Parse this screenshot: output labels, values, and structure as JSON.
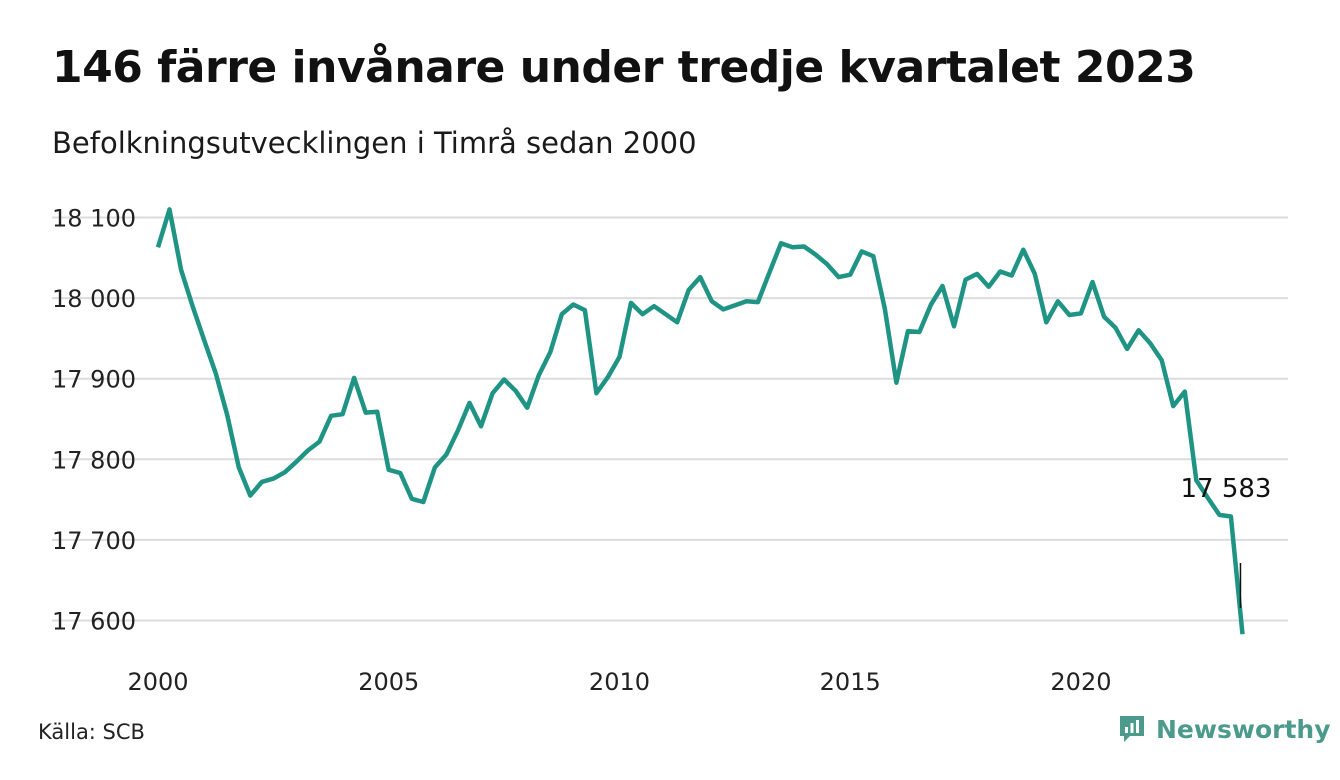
{
  "title": "146 färre invånare under tredje kvartalet 2023",
  "subtitle": "Befolkningsutvecklingen i Timrå sedan 2000",
  "source": "Källa: SCB",
  "brand": {
    "name": "Newsworthy",
    "icon": "newsworthy-logo-icon",
    "color": "#4b9a8c"
  },
  "chart_data": {
    "type": "line",
    "line_color": "#1f9485",
    "x_start": 2000,
    "x_step": 0.25,
    "xlim": [
      2000,
      2023.75
    ],
    "ylim": [
      17580,
      18110
    ],
    "grid": true,
    "y_ticks": [
      {
        "value": 17600,
        "label": "17 600"
      },
      {
        "value": 17700,
        "label": "17 700"
      },
      {
        "value": 17800,
        "label": "17 800"
      },
      {
        "value": 17900,
        "label": "17 900"
      },
      {
        "value": 18000,
        "label": "18 000"
      },
      {
        "value": 18100,
        "label": "18 100"
      }
    ],
    "x_ticks": [
      {
        "value": 2000,
        "label": "2000"
      },
      {
        "value": 2005,
        "label": "2005"
      },
      {
        "value": 2010,
        "label": "2010"
      },
      {
        "value": 2015,
        "label": "2015"
      },
      {
        "value": 2020,
        "label": "2020"
      }
    ],
    "annotation": {
      "value": 17583,
      "label": "17 583"
    },
    "values": [
      18063,
      18110,
      18035,
      17990,
      17948,
      17907,
      17855,
      17790,
      17755,
      17772,
      17776,
      17784,
      17797,
      17811,
      17822,
      17854,
      17856,
      17901,
      17858,
      17859,
      17787,
      17783,
      17751,
      17747,
      17790,
      17806,
      17836,
      17870,
      17841,
      17882,
      17899,
      17885,
      17864,
      17904,
      17933,
      17980,
      17992,
      17985,
      17882,
      17902,
      17927,
      17994,
      17980,
      17990,
      17980,
      17970,
      18010,
      18026,
      17996,
      17986,
      17991,
      17996,
      17995,
      18032,
      18068,
      18063,
      18064,
      18054,
      18042,
      18026,
      18029,
      18058,
      18052,
      17987,
      17895,
      17959,
      17958,
      17992,
      18015,
      17965,
      18023,
      18030,
      18014,
      18033,
      18028,
      18060,
      18030,
      17970,
      17996,
      17979,
      17981,
      18020,
      17977,
      17963,
      17937,
      17960,
      17944,
      17923,
      17866,
      17884,
      17774,
      17752,
      17731,
      17729,
      17583
    ]
  }
}
